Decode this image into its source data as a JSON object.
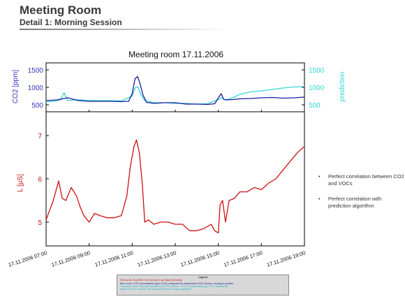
{
  "slide": {
    "title": "Meeting Room",
    "subtitle": "Detail 1: Morning Session"
  },
  "bullets": [
    "Perfect correlation between CO2 and VOCs",
    "Perfect correlation with prediction algorithm"
  ],
  "legend": {
    "title": "Legend",
    "lines": [
      "Red curve: iAQ-2000 VOC sensor's raw data [Siemens]",
      "Blue curve: CO2 concentration [ppm CO2], measured by independent CO2-Sensor, running in parallel",
      "Turquoise curve: iAQ-2000 prediction of CO2 (iMeter = VOC concentration [ppm CO2 equivalent]",
      "based on VOC sensor's raw data and Siemens unique algorithm"
    ]
  },
  "colors": {
    "red": "#cc1111",
    "blue": "#1c1c9c",
    "turquoise": "#33d6d6",
    "axis_blue": "#3333bb"
  },
  "chart_data": [
    {
      "type": "line",
      "title": "Meeting room 17.11.2006",
      "ylabel_left": "CO2 [ppm]",
      "ylabel_right": "prediction",
      "y_ticks": [
        500,
        1000,
        1500
      ],
      "ylim": [
        300,
        1700
      ],
      "xlim": [
        "17.11.2006 07:00",
        "17.11.2006 19:00"
      ],
      "grid": false,
      "series": [
        {
          "color": "#1c1c9c",
          "axis": "left",
          "x": [
            "07:00",
            "07:30",
            "08:00",
            "08:30",
            "09:00",
            "09:30",
            "10:00",
            "10:30",
            "10:50",
            "11:00",
            "11:08",
            "11:15",
            "11:22",
            "11:30",
            "11:40",
            "12:00",
            "12:30",
            "13:00",
            "13:30",
            "14:00",
            "14:30",
            "14:50",
            "15:00",
            "15:08",
            "15:15",
            "15:25",
            "15:40",
            "16:00",
            "16:30",
            "17:00",
            "17:30",
            "18:00",
            "18:30",
            "19:00"
          ],
          "values": [
            620,
            640,
            700,
            620,
            600,
            600,
            600,
            590,
            600,
            820,
            1250,
            1310,
            1100,
            780,
            570,
            540,
            560,
            560,
            520,
            520,
            510,
            530,
            700,
            820,
            650,
            640,
            650,
            670,
            680,
            700,
            710,
            690,
            700,
            720
          ]
        },
        {
          "color": "#33d6d6",
          "axis": "right",
          "x": [
            "07:00",
            "07:20",
            "07:40",
            "07:50",
            "08:00",
            "08:30",
            "09:00",
            "09:30",
            "10:00",
            "10:30",
            "11:00",
            "11:08",
            "11:15",
            "11:25",
            "11:35",
            "12:00",
            "12:30",
            "13:00",
            "13:30",
            "14:00",
            "14:30",
            "15:00",
            "15:10",
            "15:20",
            "15:40",
            "16:00",
            "16:30",
            "17:00",
            "17:30",
            "18:00",
            "18:30",
            "19:00"
          ],
          "values": [
            580,
            600,
            640,
            850,
            620,
            650,
            620,
            620,
            620,
            610,
            750,
            980,
            1020,
            780,
            620,
            560,
            560,
            540,
            540,
            520,
            530,
            650,
            700,
            640,
            700,
            800,
            870,
            900,
            940,
            980,
            1010,
            1020
          ]
        }
      ]
    },
    {
      "type": "line",
      "ylabel": "L [µS]",
      "y_ticks": [
        5,
        6,
        7
      ],
      "ylim": [
        4.45,
        7.55
      ],
      "xlim": [
        "17.11.2006 07:00",
        "17.11.2006 19:00"
      ],
      "x_tick_labels": [
        "17.11.2006 07:00",
        "17.11.2006 09:00",
        "17.11.2006 11:00",
        "17.11.2006 13:00",
        "17.11.2006 15:00",
        "17.11.2006 17:00",
        "17.11.2006 19:00"
      ],
      "grid": false,
      "series": [
        {
          "color": "#cc1111",
          "x": [
            "07:00",
            "07:20",
            "07:35",
            "07:45",
            "07:55",
            "08:10",
            "08:25",
            "08:35",
            "08:45",
            "09:00",
            "09:15",
            "09:30",
            "09:50",
            "10:10",
            "10:30",
            "10:45",
            "10:55",
            "11:05",
            "11:12",
            "11:20",
            "11:28",
            "11:35",
            "11:45",
            "12:00",
            "12:20",
            "12:40",
            "13:00",
            "13:20",
            "13:40",
            "14:00",
            "14:20",
            "14:40",
            "14:50",
            "15:00",
            "15:05",
            "15:12",
            "15:20",
            "15:30",
            "15:45",
            "16:00",
            "16:20",
            "16:40",
            "17:00",
            "17:20",
            "17:40",
            "18:00",
            "18:20",
            "18:40",
            "19:00"
          ],
          "values": [
            5.05,
            5.5,
            5.95,
            5.55,
            5.5,
            5.8,
            5.6,
            5.35,
            5.15,
            5.0,
            5.2,
            5.15,
            5.1,
            5.1,
            5.15,
            5.6,
            6.3,
            6.75,
            6.9,
            6.6,
            5.9,
            5.0,
            5.05,
            4.95,
            5.0,
            5.0,
            4.95,
            4.95,
            4.8,
            4.8,
            4.85,
            4.95,
            4.8,
            4.75,
            5.4,
            5.5,
            5.0,
            5.5,
            5.55,
            5.7,
            5.7,
            5.8,
            5.75,
            5.9,
            6.0,
            6.2,
            6.4,
            6.6,
            6.75
          ]
        }
      ]
    }
  ]
}
